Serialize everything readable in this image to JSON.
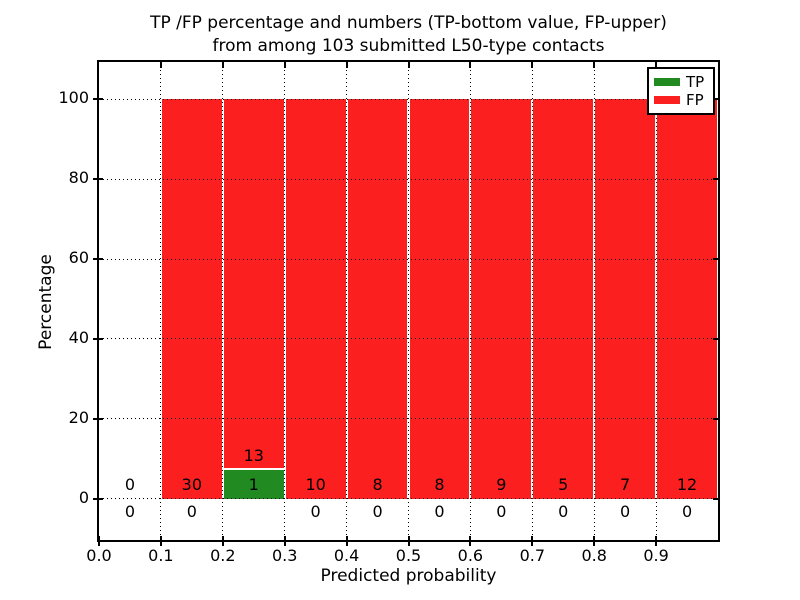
{
  "chart_data": {
    "type": "bar",
    "stacked_percentage": true,
    "title": "TP /FP percentage and numbers (TP-bottom value, FP-upper)",
    "subtitle": "from among 103 submitted L50-type contacts",
    "xlabel": "Predicted probability",
    "ylabel": "Percentage",
    "total_submitted": 103,
    "xlim": [
      0.0,
      1.0
    ],
    "ylim_display": [
      -10.3,
      109.3
    ],
    "bar_top_percent": 100,
    "grid": "dotted",
    "legend_position": "upper right",
    "bin_edges": [
      0.0,
      0.1,
      0.2,
      0.3,
      0.4,
      0.5,
      0.6,
      0.7,
      0.8,
      0.9,
      1.0
    ],
    "x_tick_labels": [
      "0.0",
      "0.1",
      "0.2",
      "0.3",
      "0.4",
      "0.5",
      "0.6",
      "0.7",
      "0.8",
      "0.9"
    ],
    "x_tick_values": [
      0.0,
      0.1,
      0.2,
      0.3,
      0.4,
      0.5,
      0.6,
      0.7,
      0.8,
      0.9
    ],
    "y_tick_labels": [
      "0",
      "20",
      "40",
      "60",
      "80",
      "100"
    ],
    "y_tick_values": [
      0,
      20,
      40,
      60,
      80,
      100
    ],
    "series": [
      {
        "name": "TP",
        "color": "#218b21",
        "counts": [
          0,
          0,
          1,
          0,
          0,
          0,
          0,
          0,
          0,
          0
        ]
      },
      {
        "name": "FP",
        "color": "#fb1f1f",
        "counts": [
          0,
          30,
          13,
          10,
          8,
          8,
          9,
          5,
          7,
          12
        ]
      }
    ]
  },
  "legend": {
    "items": [
      {
        "label": "TP",
        "color": "#218b21"
      },
      {
        "label": "FP",
        "color": "#fb1f1f"
      }
    ]
  }
}
